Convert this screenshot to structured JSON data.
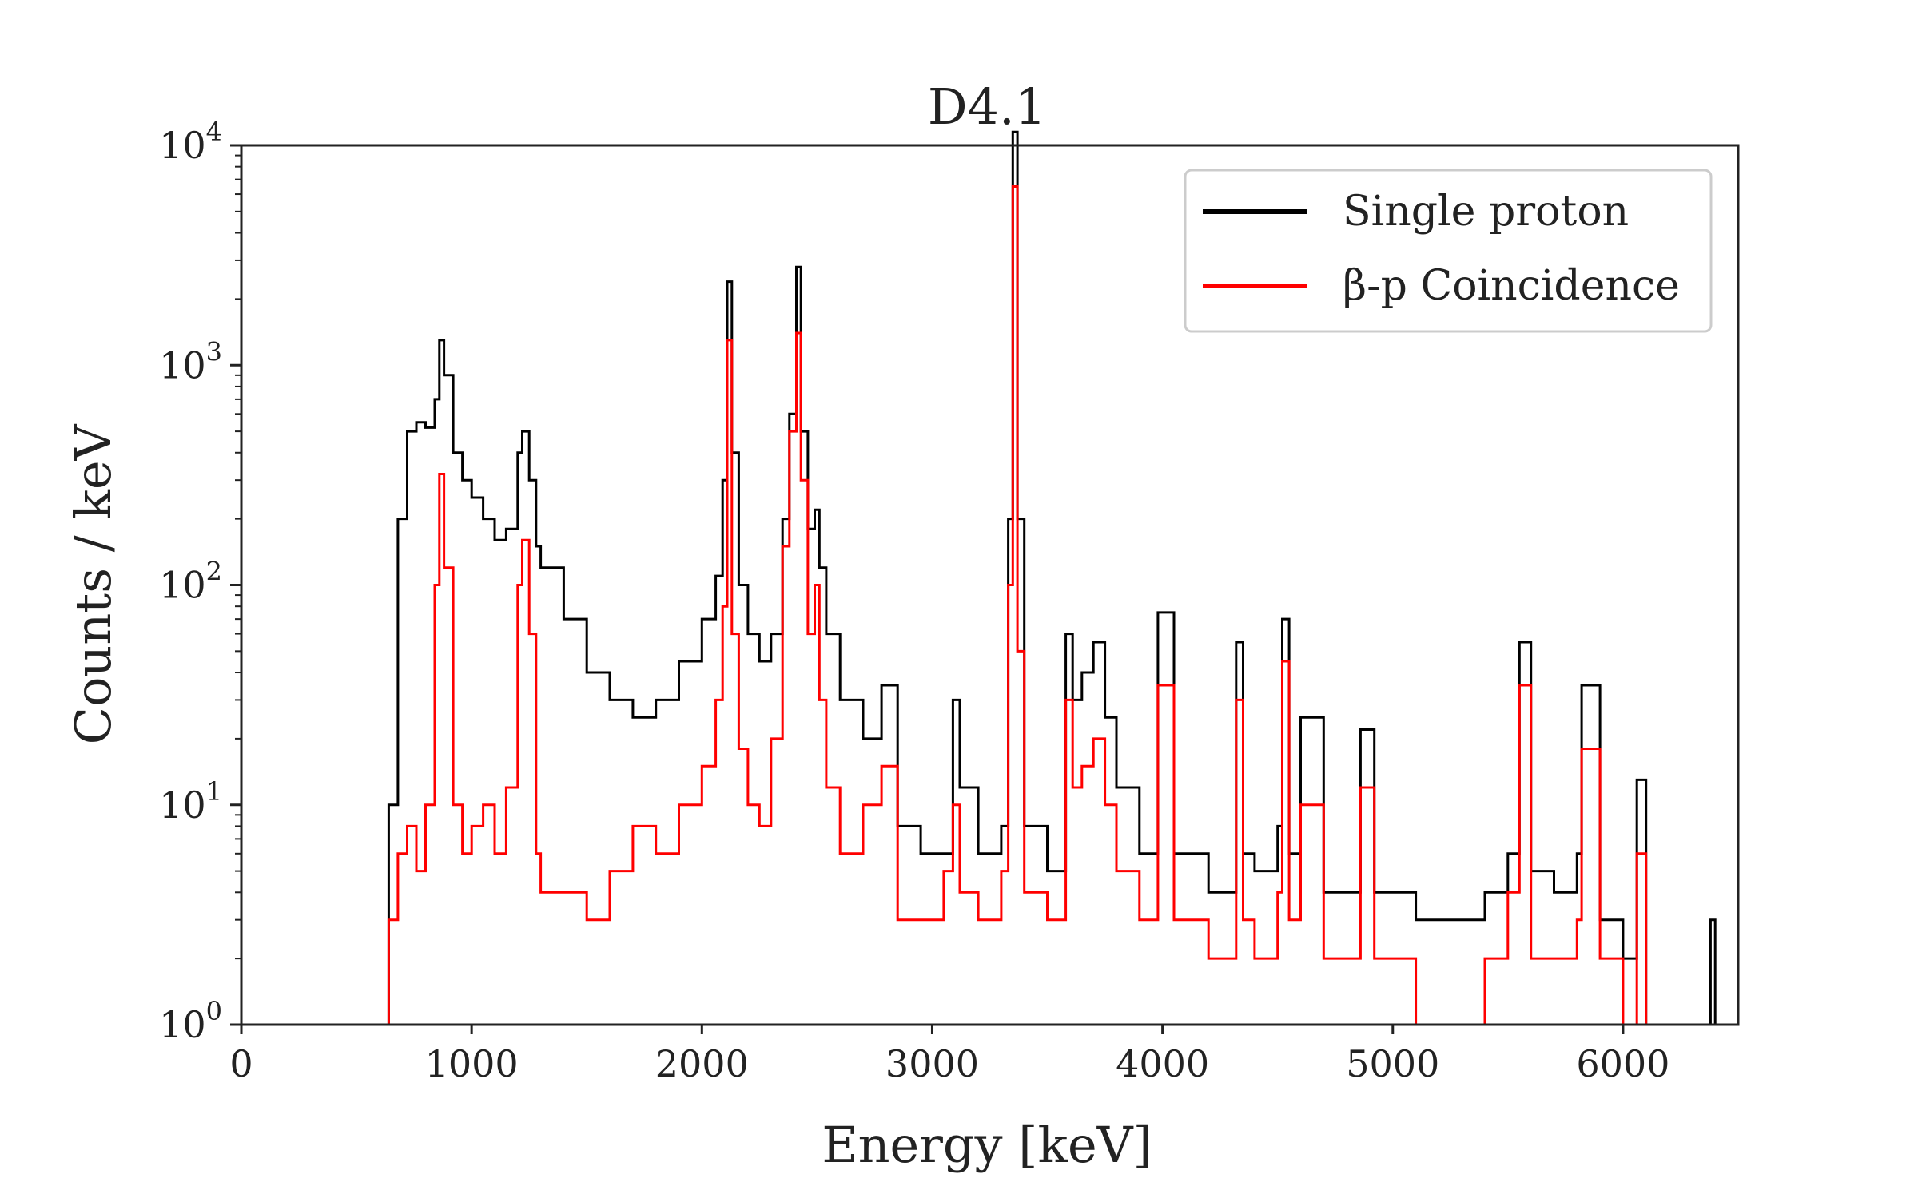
{
  "chart_data": {
    "type": "line",
    "title": "D4.1",
    "xlabel": "Energy [keV]",
    "ylabel": "Counts / keV",
    "xlim": [
      0,
      6500
    ],
    "ylim": [
      1,
      10000
    ],
    "yscale": "log",
    "x_ticks": [
      "0",
      "1000",
      "2000",
      "3000",
      "4000",
      "5000",
      "6000"
    ],
    "y_ticks": [
      {
        "base": "10",
        "exp": "0"
      },
      {
        "base": "10",
        "exp": "1"
      },
      {
        "base": "10",
        "exp": "2"
      },
      {
        "base": "10",
        "exp": "3"
      },
      {
        "base": "10",
        "exp": "4"
      }
    ],
    "grid": false,
    "legend_position": "upper-right",
    "series": [
      {
        "name": "Single proton",
        "color": "#000000",
        "x": [
          580,
          600,
          640,
          680,
          720,
          760,
          800,
          840,
          860,
          880,
          920,
          960,
          1000,
          1050,
          1100,
          1150,
          1200,
          1220,
          1250,
          1280,
          1300,
          1400,
          1500,
          1600,
          1700,
          1800,
          1900,
          2000,
          2060,
          2090,
          2110,
          2130,
          2160,
          2200,
          2250,
          2300,
          2350,
          2380,
          2410,
          2430,
          2460,
          2490,
          2510,
          2540,
          2600,
          2700,
          2780,
          2850,
          2950,
          3050,
          3090,
          3120,
          3200,
          3300,
          3330,
          3350,
          3370,
          3400,
          3500,
          3580,
          3610,
          3650,
          3700,
          3750,
          3800,
          3900,
          3980,
          4050,
          4200,
          4320,
          4350,
          4400,
          4500,
          4520,
          4550,
          4600,
          4700,
          4800,
          4860,
          4920,
          5100,
          5400,
          5500,
          5550,
          5600,
          5700,
          5800,
          5820,
          5900,
          6000,
          6060,
          6100,
          6150,
          6200,
          6300,
          6380,
          6400
        ],
        "y": [
          1,
          1,
          10,
          200,
          500,
          550,
          520,
          700,
          1300,
          900,
          400,
          300,
          250,
          200,
          160,
          180,
          400,
          500,
          300,
          150,
          120,
          70,
          40,
          30,
          25,
          30,
          45,
          70,
          110,
          300,
          2400,
          400,
          100,
          60,
          45,
          60,
          200,
          600,
          2800,
          500,
          180,
          220,
          120,
          60,
          30,
          20,
          35,
          8,
          6,
          6,
          30,
          12,
          6,
          8,
          200,
          11500,
          200,
          8,
          5,
          60,
          30,
          40,
          55,
          25,
          12,
          6,
          75,
          6,
          4,
          55,
          6,
          5,
          8,
          70,
          6,
          25,
          4,
          4,
          22,
          4,
          3,
          4,
          6,
          55,
          5,
          4,
          6,
          35,
          3,
          2,
          13,
          1,
          1,
          1,
          1,
          3,
          1
        ]
      },
      {
        "name": "β-p Coincidence",
        "color": "#ff0000",
        "x": [
          600,
          640,
          680,
          720,
          760,
          800,
          840,
          860,
          880,
          920,
          960,
          1000,
          1050,
          1100,
          1150,
          1200,
          1220,
          1250,
          1280,
          1300,
          1400,
          1500,
          1600,
          1700,
          1800,
          1900,
          2000,
          2060,
          2090,
          2110,
          2130,
          2160,
          2200,
          2250,
          2300,
          2350,
          2380,
          2410,
          2430,
          2460,
          2490,
          2510,
          2540,
          2600,
          2700,
          2780,
          2850,
          2950,
          3050,
          3090,
          3120,
          3200,
          3300,
          3330,
          3350,
          3370,
          3400,
          3500,
          3580,
          3610,
          3650,
          3700,
          3750,
          3800,
          3900,
          3980,
          4050,
          4200,
          4320,
          4350,
          4400,
          4500,
          4520,
          4550,
          4600,
          4700,
          4800,
          4860,
          4920,
          5100,
          5400,
          5500,
          5550,
          5600,
          5700,
          5800,
          5820,
          5900,
          6000,
          6060,
          6100
        ],
        "y": [
          1,
          3,
          6,
          8,
          5,
          10,
          100,
          320,
          120,
          10,
          6,
          8,
          10,
          6,
          12,
          100,
          160,
          60,
          6,
          4,
          4,
          3,
          5,
          8,
          6,
          10,
          15,
          30,
          80,
          1300,
          60,
          18,
          10,
          8,
          20,
          150,
          500,
          1400,
          300,
          60,
          100,
          30,
          12,
          6,
          10,
          15,
          3,
          3,
          5,
          10,
          4,
          3,
          5,
          100,
          6500,
          50,
          4,
          3,
          30,
          12,
          15,
          20,
          10,
          5,
          3,
          35,
          3,
          2,
          30,
          3,
          2,
          4,
          45,
          3,
          10,
          2,
          2,
          12,
          2,
          1,
          2,
          4,
          35,
          2,
          2,
          3,
          18,
          2,
          1,
          6,
          1
        ]
      }
    ]
  }
}
